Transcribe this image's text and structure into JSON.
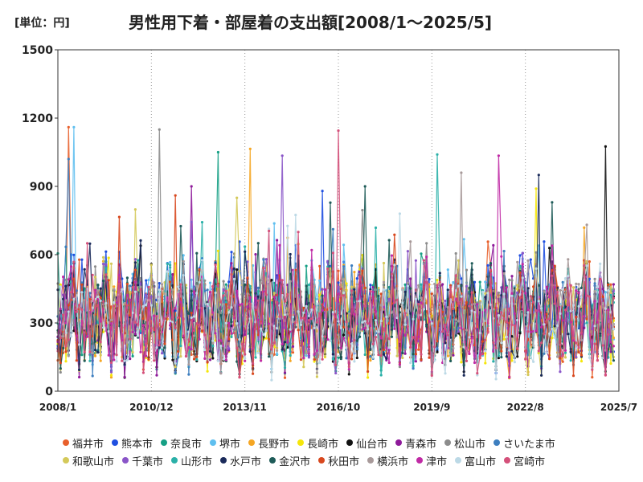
{
  "chart_data": {
    "type": "line",
    "title": "男性用下着・部屋着の支出額[2008/1～2025/5]",
    "unit_label": "[単位：円]",
    "ylim": [
      0,
      1500
    ],
    "y_ticks": [
      0,
      300,
      600,
      900,
      1200,
      1500
    ],
    "x_ticks": [
      "2008/1",
      "2010/12",
      "2013/11",
      "2016/10",
      "2019/9",
      "2022/8",
      "2025/7"
    ],
    "x_tick_month_index": [
      0,
      35,
      70,
      105,
      140,
      175,
      210
    ],
    "n_months": 209,
    "grid": "vertical-dotted",
    "legend_position": "bottom",
    "series": [
      {
        "name": "福井市",
        "color": "#e8602c",
        "base": 300,
        "peak": 1160
      },
      {
        "name": "熊本市",
        "color": "#1f4fe0",
        "base": 330,
        "peak": 880
      },
      {
        "name": "奈良市",
        "color": "#16a085",
        "base": 310,
        "peak": 1050
      },
      {
        "name": "堺市",
        "color": "#5fbfef",
        "base": 320,
        "peak": 1160
      },
      {
        "name": "長野市",
        "color": "#f5a623",
        "base": 300,
        "peak": 1065
      },
      {
        "name": "長崎市",
        "color": "#f5e60a",
        "base": 290,
        "peak": 890
      },
      {
        "name": "仙台市",
        "color": "#111111",
        "base": 300,
        "peak": 1075
      },
      {
        "name": "青森市",
        "color": "#8e1a9a",
        "base": 300,
        "peak": 900
      },
      {
        "name": "松山市",
        "color": "#8c8c8c",
        "base": 330,
        "peak": 1150
      },
      {
        "name": "さいたま市",
        "color": "#3d7ebf",
        "base": 310,
        "peak": 1020
      },
      {
        "name": "和歌山市",
        "color": "#d4c95a",
        "base": 300,
        "peak": 850
      },
      {
        "name": "千葉市",
        "color": "#8a55c8",
        "base": 310,
        "peak": 1035
      },
      {
        "name": "山形市",
        "color": "#2ab0a8",
        "base": 300,
        "peak": 1040
      },
      {
        "name": "水戸市",
        "color": "#1a2a5a",
        "base": 310,
        "peak": 950
      },
      {
        "name": "金沢市",
        "color": "#1e5b58",
        "base": 300,
        "peak": 900
      },
      {
        "name": "秋田市",
        "color": "#d8481e",
        "base": 300,
        "peak": 860
      },
      {
        "name": "横浜市",
        "color": "#a89a9a",
        "base": 320,
        "peak": 960
      },
      {
        "name": "津市",
        "color": "#c02aa5",
        "base": 290,
        "peak": 1035
      },
      {
        "name": "富山市",
        "color": "#bcd9e6",
        "base": 290,
        "peak": 780
      },
      {
        "name": "宮崎市",
        "color": "#d4507a",
        "base": 300,
        "peak": 1145
      }
    ]
  }
}
